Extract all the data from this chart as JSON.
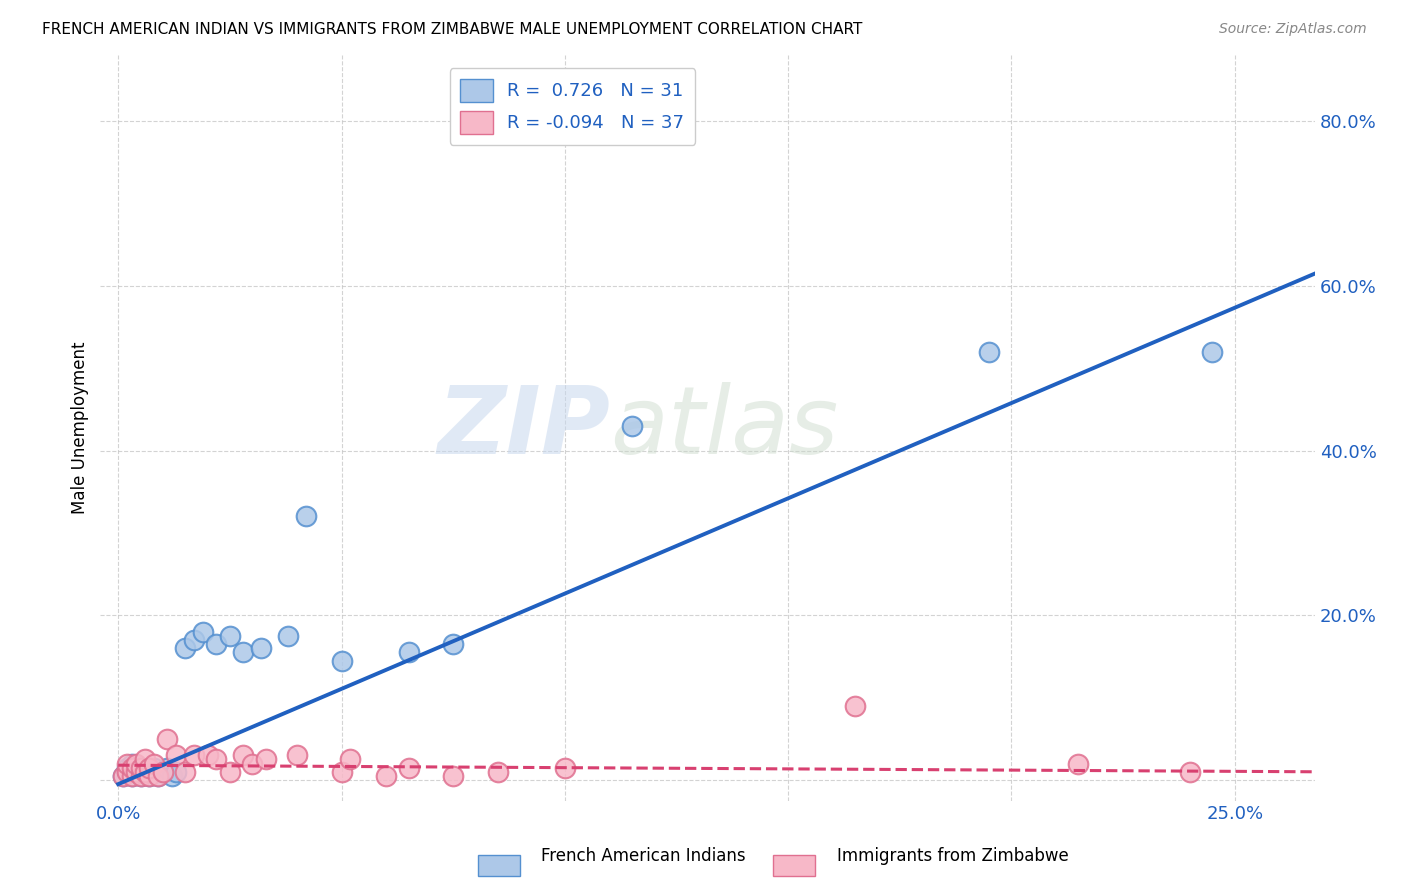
{
  "title": "FRENCH AMERICAN INDIAN VS IMMIGRANTS FROM ZIMBABWE MALE UNEMPLOYMENT CORRELATION CHART",
  "source": "Source: ZipAtlas.com",
  "ylabel": "Male Unemployment",
  "x_ticks": [
    0.0,
    0.05,
    0.1,
    0.15,
    0.2,
    0.25
  ],
  "x_tick_labels": [
    "0.0%",
    "",
    "",
    "",
    "",
    "25.0%"
  ],
  "y_ticks": [
    0.0,
    0.2,
    0.4,
    0.6,
    0.8
  ],
  "y_tick_labels": [
    "",
    "20.0%",
    "40.0%",
    "60.0%",
    "80.0%"
  ],
  "xlim": [
    -0.004,
    0.268
  ],
  "ylim": [
    -0.025,
    0.88
  ],
  "blue_R": "0.726",
  "blue_N": "31",
  "pink_R": "-0.094",
  "pink_N": "37",
  "blue_fill": "#adc8e8",
  "pink_fill": "#f7b8c8",
  "blue_edge": "#5590d0",
  "pink_edge": "#e07090",
  "blue_line_color": "#2060c0",
  "pink_line_color": "#d84070",
  "legend_label_blue": "French American Indians",
  "legend_label_pink": "Immigrants from Zimbabwe",
  "blue_points_x": [
    0.001,
    0.002,
    0.002,
    0.003,
    0.003,
    0.004,
    0.005,
    0.005,
    0.006,
    0.007,
    0.008,
    0.009,
    0.01,
    0.011,
    0.012,
    0.013,
    0.015,
    0.017,
    0.019,
    0.022,
    0.025,
    0.028,
    0.032,
    0.038,
    0.042,
    0.05,
    0.065,
    0.075,
    0.115,
    0.195,
    0.245
  ],
  "blue_points_y": [
    0.005,
    0.01,
    0.015,
    0.005,
    0.02,
    0.01,
    0.005,
    0.015,
    0.01,
    0.005,
    0.015,
    0.005,
    0.01,
    0.015,
    0.005,
    0.01,
    0.16,
    0.17,
    0.18,
    0.165,
    0.175,
    0.155,
    0.16,
    0.175,
    0.32,
    0.145,
    0.155,
    0.165,
    0.43,
    0.52,
    0.52
  ],
  "pink_points_x": [
    0.001,
    0.002,
    0.002,
    0.003,
    0.003,
    0.004,
    0.004,
    0.005,
    0.005,
    0.006,
    0.006,
    0.007,
    0.007,
    0.008,
    0.009,
    0.01,
    0.011,
    0.013,
    0.015,
    0.017,
    0.02,
    0.022,
    0.025,
    0.028,
    0.03,
    0.033,
    0.04,
    0.05,
    0.052,
    0.06,
    0.065,
    0.075,
    0.085,
    0.1,
    0.165,
    0.215,
    0.24
  ],
  "pink_points_y": [
    0.005,
    0.01,
    0.02,
    0.005,
    0.015,
    0.01,
    0.02,
    0.005,
    0.015,
    0.01,
    0.025,
    0.005,
    0.015,
    0.02,
    0.005,
    0.01,
    0.05,
    0.03,
    0.01,
    0.03,
    0.03,
    0.025,
    0.01,
    0.03,
    0.02,
    0.025,
    0.03,
    0.01,
    0.025,
    0.005,
    0.015,
    0.005,
    0.01,
    0.015,
    0.09,
    0.02,
    0.01
  ],
  "blue_line_x0": 0.0,
  "blue_line_y0": -0.005,
  "blue_line_x1": 0.268,
  "blue_line_y1": 0.615,
  "pink_line_x0": 0.0,
  "pink_line_y0": 0.018,
  "pink_line_x1": 0.268,
  "pink_line_y1": 0.01,
  "watermark_zip": "ZIP",
  "watermark_atlas": "atlas",
  "background_color": "#ffffff",
  "grid_color": "#c8c8c8"
}
